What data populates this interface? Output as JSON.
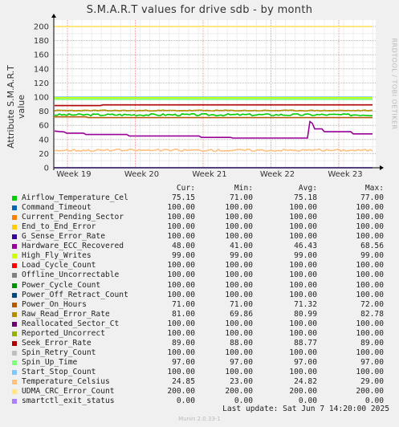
{
  "title": "S.M.A.R.T values for drive sdb - by month",
  "watermark": "RRDTOOL / TOBI OETIKER",
  "footer": {
    "last_update": "Last update:  Sat Jun  7 14:20:00 2025",
    "version": "Munin 2.0.33-1"
  },
  "legend_headers": {
    "cur": "Cur:",
    "min": "Min:",
    "avg": "Avg:",
    "max": "Max:"
  },
  "colors": {
    "background": "#f0f0f0",
    "plot_background": "#ffffff",
    "grid_major": "#ff9999",
    "grid_minor": "#eeeeee"
  },
  "chart_data": {
    "type": "line",
    "title": "S.M.A.R.T values for drive sdb - by month",
    "ylabel": "Attribute S.M.A.R.T value",
    "xlabel": "",
    "ylim": [
      0,
      200
    ],
    "yticks": [
      0,
      20,
      40,
      60,
      80,
      100,
      120,
      140,
      160,
      180,
      200
    ],
    "xticks": [
      "Week 19",
      "Week 20",
      "Week 21",
      "Week 22",
      "Week 23"
    ],
    "grid": true,
    "legend_position": "bottom",
    "series": [
      {
        "name": "Airflow_Temperature_Cel",
        "color": "#00cc00",
        "cur": "75.15",
        "min": "71.00",
        "avg": "75.18",
        "max": "77.00",
        "level": 75
      },
      {
        "name": "Command_Timeout",
        "color": "#0066b3",
        "cur": "100.00",
        "min": "100.00",
        "avg": "100.00",
        "max": "100.00",
        "level": 100
      },
      {
        "name": "Current_Pending_Sector",
        "color": "#ff8000",
        "cur": "100.00",
        "min": "100.00",
        "avg": "100.00",
        "max": "100.00",
        "level": 100
      },
      {
        "name": "End_to_End_Error",
        "color": "#ffcc00",
        "cur": "100.00",
        "min": "100.00",
        "avg": "100.00",
        "max": "100.00",
        "level": 100
      },
      {
        "name": "G_Sense_Error_Rate",
        "color": "#330099",
        "cur": "100.00",
        "min": "100.00",
        "avg": "100.00",
        "max": "100.00",
        "level": 100
      },
      {
        "name": "Hardware_ECC_Recovered",
        "color": "#990099",
        "cur": "48.00",
        "min": "41.00",
        "avg": "46.43",
        "max": "68.56",
        "level": 48
      },
      {
        "name": "High_Fly_Writes",
        "color": "#ccff00",
        "cur": "99.00",
        "min": "99.00",
        "avg": "99.00",
        "max": "99.00",
        "level": 99
      },
      {
        "name": "Load_Cycle_Count",
        "color": "#ff0000",
        "cur": "100.00",
        "min": "100.00",
        "avg": "100.00",
        "max": "100.00",
        "level": 100
      },
      {
        "name": "Offline_Uncorrectable",
        "color": "#808080",
        "cur": "100.00",
        "min": "100.00",
        "avg": "100.00",
        "max": "100.00",
        "level": 100
      },
      {
        "name": "Power_Cycle_Count",
        "color": "#008f00",
        "cur": "100.00",
        "min": "100.00",
        "avg": "100.00",
        "max": "100.00",
        "level": 100
      },
      {
        "name": "Power_Off_Retract_Count",
        "color": "#00487d",
        "cur": "100.00",
        "min": "100.00",
        "avg": "100.00",
        "max": "100.00",
        "level": 100
      },
      {
        "name": "Power_On_Hours",
        "color": "#b35a00",
        "cur": "71.00",
        "min": "71.00",
        "avg": "71.32",
        "max": "72.00",
        "level": 71
      },
      {
        "name": "Raw_Read_Error_Rate",
        "color": "#b38f00",
        "cur": "81.00",
        "min": "69.86",
        "avg": "80.99",
        "max": "82.78",
        "level": 81
      },
      {
        "name": "Reallocated_Sector_Ct",
        "color": "#6b006b",
        "cur": "100.00",
        "min": "100.00",
        "avg": "100.00",
        "max": "100.00",
        "level": 100
      },
      {
        "name": "Reported_Uncorrect",
        "color": "#8fb300",
        "cur": "100.00",
        "min": "100.00",
        "avg": "100.00",
        "max": "100.00",
        "level": 100
      },
      {
        "name": "Seek_Error_Rate",
        "color": "#b30000",
        "cur": "89.00",
        "min": "88.00",
        "avg": "88.77",
        "max": "89.00",
        "level": 89
      },
      {
        "name": "Spin_Retry_Count",
        "color": "#bebebe",
        "cur": "100.00",
        "min": "100.00",
        "avg": "100.00",
        "max": "100.00",
        "level": 100
      },
      {
        "name": "Spin_Up_Time",
        "color": "#80ff80",
        "cur": "97.00",
        "min": "97.00",
        "avg": "97.00",
        "max": "97.00",
        "level": 97
      },
      {
        "name": "Start_Stop_Count",
        "color": "#80c9ff",
        "cur": "100.00",
        "min": "100.00",
        "avg": "100.00",
        "max": "100.00",
        "level": 100
      },
      {
        "name": "Temperature_Celsius",
        "color": "#ffc080",
        "cur": "24.85",
        "min": "23.00",
        "avg": "24.82",
        "max": "29.00",
        "level": 24.8
      },
      {
        "name": "UDMA_CRC_Error_Count",
        "color": "#ffe680",
        "cur": "200.00",
        "min": "200.00",
        "avg": "200.00",
        "max": "200.00",
        "level": 200
      },
      {
        "name": "smartctl_exit_status",
        "color": "#aa80ff",
        "cur": "0.00",
        "min": "0.00",
        "avg": "0.00",
        "max": "0.00",
        "level": 0
      }
    ]
  }
}
